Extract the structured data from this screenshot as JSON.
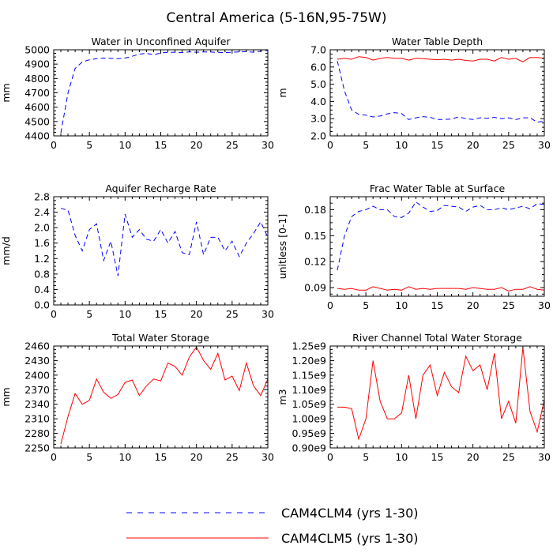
{
  "title": "Central America (5-16N,95-75W)",
  "legend": {
    "placement": "bottom-center",
    "entries": [
      {
        "label": "CAM4CLM4 (yrs 1-30)",
        "color": "#0000ff",
        "dash": "dashed"
      },
      {
        "label": "CAM4CLM5 (yrs 1-30)",
        "color": "#ff0000",
        "dash": "solid"
      }
    ]
  },
  "chart_data": [
    {
      "type": "line",
      "title": "Water in Unconfined Aquifer",
      "ylabel": "mm",
      "xlim": [
        0,
        30
      ],
      "ylim": [
        4400,
        5000
      ],
      "xticks": [
        0,
        5,
        10,
        15,
        20,
        25,
        30
      ],
      "yticks": [
        4400,
        4500,
        4600,
        4700,
        4800,
        4900,
        5000
      ],
      "ytick_labels": [
        "4400",
        "4500",
        "4600",
        "4700",
        "4800",
        "4900",
        "5000"
      ],
      "xtick_labels": [
        "0",
        "5",
        "10",
        "15",
        "20",
        "25",
        "30"
      ],
      "x": [
        1,
        2,
        3,
        4,
        5,
        6,
        7,
        8,
        9,
        10,
        11,
        12,
        13,
        14,
        15,
        16,
        17,
        18,
        19,
        20,
        21,
        22,
        23,
        24,
        25,
        26,
        27,
        28,
        29,
        30
      ],
      "series": [
        {
          "color": "#0000ff",
          "dash": "dashed",
          "values": [
            4420,
            4700,
            4870,
            4915,
            4930,
            4938,
            4942,
            4940,
            4938,
            4942,
            4955,
            4970,
            4975,
            4965,
            4978,
            4982,
            4983,
            4980,
            4985,
            4983,
            4985,
            4984,
            4982,
            4980,
            4983,
            4985,
            4987,
            4983,
            4990,
            4995
          ]
        },
        {
          "color": "#ff0000",
          "dash": "solid",
          "values": [
            5000,
            5000,
            5000,
            5000,
            5000,
            5000,
            5000,
            5000,
            5000,
            5000,
            5000,
            5000,
            5000,
            5000,
            5000,
            5000,
            5000,
            5000,
            5000,
            5000,
            5000,
            5000,
            5000,
            5000,
            5000,
            5000,
            5000,
            5000,
            5000,
            5000
          ]
        }
      ]
    },
    {
      "type": "line",
      "title": "Water Table Depth",
      "ylabel": "m",
      "xlim": [
        0,
        30
      ],
      "ylim": [
        2,
        7
      ],
      "xticks": [
        0,
        5,
        10,
        15,
        20,
        25,
        30
      ],
      "yticks": [
        2,
        3,
        4,
        5,
        6,
        7
      ],
      "ytick_labels": [
        "2.0",
        "3.0",
        "4.0",
        "5.0",
        "6.0",
        "7.0"
      ],
      "xtick_labels": [
        "0",
        "5",
        "10",
        "15",
        "20",
        "25",
        "30"
      ],
      "x": [
        1,
        2,
        3,
        4,
        5,
        6,
        7,
        8,
        9,
        10,
        11,
        12,
        13,
        14,
        15,
        16,
        17,
        18,
        19,
        20,
        21,
        22,
        23,
        24,
        25,
        26,
        27,
        28,
        29,
        30
      ],
      "series": [
        {
          "color": "#0000ff",
          "dash": "dashed",
          "values": [
            6.35,
            4.6,
            3.5,
            3.25,
            3.2,
            3.1,
            3.15,
            3.28,
            3.35,
            3.3,
            2.95,
            3.05,
            3.12,
            3.08,
            2.95,
            2.95,
            2.98,
            3.1,
            3.0,
            2.95,
            3.05,
            3.02,
            3.08,
            3.0,
            3.05,
            2.95,
            3.05,
            3.05,
            2.8,
            2.85
          ]
        },
        {
          "color": "#ff0000",
          "dash": "solid",
          "values": [
            6.45,
            6.5,
            6.45,
            6.6,
            6.55,
            6.4,
            6.5,
            6.55,
            6.5,
            6.5,
            6.4,
            6.5,
            6.48,
            6.45,
            6.42,
            6.45,
            6.4,
            6.45,
            6.38,
            6.35,
            6.45,
            6.45,
            6.35,
            6.55,
            6.45,
            6.5,
            6.3,
            6.55,
            6.55,
            6.5
          ]
        }
      ]
    },
    {
      "type": "line",
      "title": "Aquifer Recharge Rate",
      "ylabel": "mm/d",
      "xlim": [
        0,
        30
      ],
      "ylim": [
        0,
        2.8
      ],
      "xticks": [
        0,
        5,
        10,
        15,
        20,
        25,
        30
      ],
      "yticks": [
        0,
        0.4,
        0.8,
        1.2,
        1.6,
        2.0,
        2.4,
        2.8
      ],
      "ytick_labels": [
        "0.0",
        "0.4",
        "0.8",
        "1.2",
        "1.6",
        "2.0",
        "2.4",
        "2.8"
      ],
      "xtick_labels": [
        "0",
        "5",
        "10",
        "15",
        "20",
        "25",
        "30"
      ],
      "x": [
        1,
        2,
        3,
        4,
        5,
        6,
        7,
        8,
        9,
        10,
        11,
        12,
        13,
        14,
        15,
        16,
        17,
        18,
        19,
        20,
        21,
        22,
        23,
        24,
        25,
        26,
        27,
        28,
        29,
        30
      ],
      "series": [
        {
          "color": "#0000ff",
          "dash": "dashed",
          "values": [
            2.5,
            2.45,
            1.8,
            1.4,
            1.95,
            2.1,
            1.15,
            1.65,
            0.75,
            2.35,
            1.75,
            1.95,
            1.7,
            1.65,
            1.95,
            1.6,
            1.9,
            1.35,
            1.3,
            2.15,
            1.3,
            1.75,
            1.75,
            1.4,
            1.65,
            1.25,
            1.6,
            1.85,
            2.15,
            1.75
          ]
        },
        {
          "color": "#ff0000",
          "dash": "solid",
          "values": [
            0,
            0,
            0,
            0,
            0,
            0,
            0,
            0,
            0,
            0,
            0,
            0,
            0,
            0,
            0,
            0,
            0,
            0,
            0,
            0,
            0,
            0,
            0,
            0,
            0,
            0,
            0,
            0,
            0,
            0
          ]
        }
      ]
    },
    {
      "type": "line",
      "title": "Frac Water Table at Surface",
      "ylabel": "unitless [0-1]",
      "xlim": [
        0,
        30
      ],
      "ylim": [
        0.08,
        0.195
      ],
      "xticks": [
        0,
        5,
        10,
        15,
        20,
        25,
        30
      ],
      "yticks": [
        0.09,
        0.12,
        0.15,
        0.18
      ],
      "ytick_labels": [
        "0.09",
        "0.12",
        "0.15",
        "0.18"
      ],
      "xtick_labels": [
        "0",
        "5",
        "10",
        "15",
        "20",
        "25",
        "30"
      ],
      "x": [
        1,
        2,
        3,
        4,
        5,
        6,
        7,
        8,
        9,
        10,
        11,
        12,
        13,
        14,
        15,
        16,
        17,
        18,
        19,
        20,
        21,
        22,
        23,
        24,
        25,
        26,
        27,
        28,
        29,
        30
      ],
      "series": [
        {
          "color": "#0000ff",
          "dash": "dashed",
          "values": [
            0.11,
            0.15,
            0.172,
            0.178,
            0.18,
            0.184,
            0.18,
            0.18,
            0.172,
            0.171,
            0.176,
            0.189,
            0.183,
            0.178,
            0.179,
            0.185,
            0.184,
            0.183,
            0.178,
            0.183,
            0.185,
            0.18,
            0.18,
            0.182,
            0.18,
            0.182,
            0.184,
            0.181,
            0.187,
            0.186
          ]
        },
        {
          "color": "#ff0000",
          "dash": "solid",
          "values": [
            0.089,
            0.088,
            0.089,
            0.087,
            0.087,
            0.091,
            0.089,
            0.087,
            0.088,
            0.087,
            0.091,
            0.088,
            0.089,
            0.088,
            0.089,
            0.089,
            0.089,
            0.089,
            0.088,
            0.09,
            0.089,
            0.088,
            0.088,
            0.09,
            0.086,
            0.088,
            0.088,
            0.091,
            0.088,
            0.087
          ]
        }
      ]
    },
    {
      "type": "line",
      "title": "Total Water Storage",
      "ylabel": "mm",
      "xlim": [
        0,
        30
      ],
      "ylim": [
        2250,
        2460
      ],
      "xticks": [
        0,
        5,
        10,
        15,
        20,
        25,
        30
      ],
      "yticks": [
        2250,
        2280,
        2310,
        2340,
        2370,
        2400,
        2430,
        2460
      ],
      "ytick_labels": [
        "2250",
        "2280",
        "2310",
        "2340",
        "2370",
        "2400",
        "2430",
        "2460"
      ],
      "xtick_labels": [
        "0",
        "5",
        "10",
        "15",
        "20",
        "25",
        "30"
      ],
      "x": [
        1,
        2,
        3,
        4,
        5,
        6,
        7,
        8,
        9,
        10,
        11,
        12,
        13,
        14,
        15,
        16,
        17,
        18,
        19,
        20,
        21,
        22,
        23,
        24,
        25,
        26,
        27,
        28,
        29,
        30
      ],
      "series": [
        {
          "color": "#ff0000",
          "dash": "solid",
          "values": [
            2258,
            2315,
            2362,
            2340,
            2348,
            2392,
            2365,
            2352,
            2360,
            2385,
            2390,
            2358,
            2378,
            2392,
            2388,
            2425,
            2418,
            2400,
            2437,
            2458,
            2430,
            2412,
            2445,
            2390,
            2398,
            2368,
            2425,
            2378,
            2358,
            2392
          ]
        }
      ]
    },
    {
      "type": "line",
      "title": "River Channel Total Water Storage",
      "ylabel": "m3",
      "xlim": [
        0,
        30
      ],
      "ylim": [
        0.9,
        1.25
      ],
      "xticks": [
        0,
        5,
        10,
        15,
        20,
        25,
        30
      ],
      "yticks": [
        0.9,
        0.95,
        1.0,
        1.05,
        1.1,
        1.15,
        1.2,
        1.25
      ],
      "ytick_labels": [
        "0.90e9",
        "0.95e9",
        "1.00e9",
        "1.05e9",
        "1.10e9",
        "1.15e9",
        "1.20e9",
        "1.25e9"
      ],
      "xtick_labels": [
        "0",
        "5",
        "10",
        "15",
        "20",
        "25",
        "30"
      ],
      "x": [
        1,
        2,
        3,
        4,
        5,
        6,
        7,
        8,
        9,
        10,
        11,
        12,
        13,
        14,
        15,
        16,
        17,
        18,
        19,
        20,
        21,
        22,
        23,
        24,
        25,
        26,
        27,
        28,
        29,
        30
      ],
      "series": [
        {
          "color": "#ff0000",
          "dash": "solid",
          "values": [
            1.04,
            1.04,
            1.035,
            0.93,
            1.0,
            1.2,
            1.06,
            1.0,
            1.0,
            1.02,
            1.15,
            1.0,
            1.15,
            1.185,
            1.08,
            1.16,
            1.11,
            1.09,
            1.215,
            1.165,
            1.185,
            1.1,
            1.225,
            1.0,
            1.06,
            0.985,
            1.245,
            1.025,
            0.955,
            1.065
          ]
        }
      ]
    }
  ]
}
